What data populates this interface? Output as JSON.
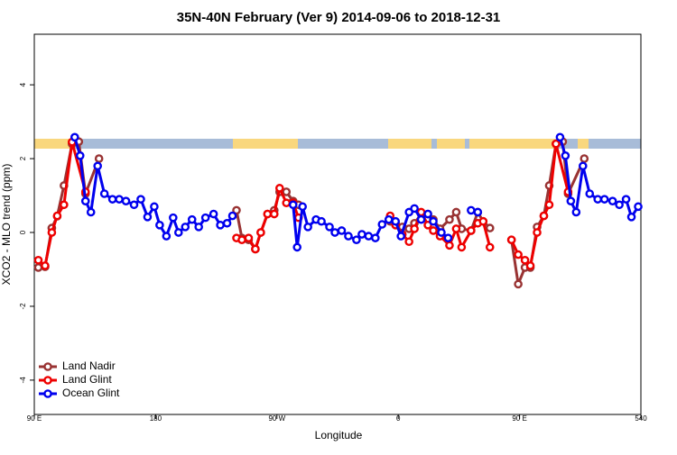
{
  "chart_data": {
    "type": "line",
    "title": "35N-40N February (Ver 9)   2014-09-06 to 2018-12-31",
    "x_label": "Longitude",
    "y_label": "XCO2 - MLO trend (ppm)",
    "xlim": [
      90,
      540
    ],
    "xticks": [
      {
        "value": 90,
        "label": "90 E"
      },
      180,
      {
        "value": 270,
        "label": "90 W"
      },
      {
        "value": 360,
        "label": "0"
      },
      {
        "value": 450,
        "label": "90 E"
      },
      540
    ],
    "ylim": [
      -4.93,
      5.37
    ],
    "yticks": [
      -4,
      -2,
      0,
      2,
      4
    ],
    "legend": "bottom-left",
    "series": [
      {
        "name": "Land Nadir",
        "color": "#993333",
        "x": [
          93,
          98,
          103,
          107,
          112,
          118,
          123,
          128,
          138,
          180,
          240,
          244,
          249,
          254,
          258,
          263,
          268,
          272,
          277,
          282,
          286,
          320,
          354,
          358,
          363,
          368,
          372,
          377,
          382,
          386,
          391,
          398,
          403,
          407,
          414,
          419,
          423,
          428,
          436,
          444,
          449,
          454,
          458,
          463,
          468,
          472,
          477,
          482,
          486,
          498
        ],
        "values": [
          -0.95,
          -0.93,
          0.12,
          0.44,
          1.27,
          2.4,
          2.46,
          1.05,
          2.0,
          null,
          0.6,
          -0.15,
          -0.2,
          -0.45,
          0,
          0.5,
          0.6,
          1.1,
          1.1,
          0.85,
          0.75,
          null,
          0.3,
          0.25,
          0.15,
          0.1,
          0.25,
          0.5,
          0.5,
          0.35,
          0.1,
          0.35,
          0.55,
          0.1,
          0.05,
          0.55,
          0.3,
          0.12,
          null,
          -0.2,
          -1.4,
          -0.95,
          -0.95,
          0.15,
          0.45,
          1.27,
          2.4,
          2.46,
          1.05,
          2.0
        ]
      },
      {
        "name": "Land Glint",
        "color": "#ee0000",
        "x": [
          93,
          98,
          103,
          107,
          112,
          118,
          128,
          180,
          240,
          244,
          249,
          254,
          258,
          263,
          268,
          272,
          277,
          282,
          286,
          320,
          354,
          358,
          363,
          368,
          372,
          377,
          382,
          386,
          391,
          398,
          403,
          407,
          414,
          419,
          423,
          428,
          436,
          444,
          449,
          454,
          458,
          463,
          468,
          472,
          477,
          486
        ],
        "values": [
          -0.75,
          -0.9,
          0,
          0.45,
          0.75,
          2.45,
          1.1,
          null,
          -0.15,
          -0.2,
          -0.15,
          -0.45,
          0,
          0.5,
          0.5,
          1.2,
          0.8,
          0.8,
          0.4,
          null,
          0.45,
          0.2,
          -0.05,
          -0.25,
          0.1,
          0.55,
          0.2,
          0.05,
          -0.1,
          -0.35,
          0.1,
          -0.4,
          0.05,
          0.25,
          0.3,
          -0.4,
          null,
          -0.2,
          -0.6,
          -0.75,
          -0.9,
          0,
          0.45,
          0.75,
          2.4,
          1.1
        ]
      },
      {
        "name": "Ocean Glint",
        "color": "#0000ee",
        "x": [
          120,
          124,
          128,
          132,
          137,
          142,
          148,
          153,
          158,
          164,
          169,
          174,
          179,
          183,
          188,
          193,
          197,
          202,
          207,
          212,
          217,
          223,
          228,
          233,
          237,
          260,
          282,
          285,
          289,
          293,
          299,
          303,
          309,
          313,
          318,
          323,
          329,
          333,
          338,
          343,
          348,
          353,
          358,
          362,
          368,
          372,
          377,
          382,
          386,
          392,
          397,
          405,
          414,
          419,
          450,
          480,
          484,
          488,
          492,
          497,
          502,
          508,
          513,
          519,
          524,
          529,
          533,
          538
        ],
        "values": [
          2.58,
          2.08,
          0.85,
          0.55,
          1.8,
          1.05,
          0.9,
          0.9,
          0.85,
          0.75,
          0.9,
          0.42,
          0.7,
          0.2,
          -0.1,
          0.4,
          0,
          0.15,
          0.35,
          0.15,
          0.4,
          0.5,
          0.2,
          0.25,
          0.45,
          null,
          0.75,
          -0.4,
          0.7,
          0.15,
          0.35,
          0.3,
          0.15,
          0,
          0.05,
          -0.1,
          -0.2,
          -0.05,
          -0.1,
          -0.15,
          0.22,
          0.35,
          0.3,
          -0.1,
          0.55,
          0.65,
          0.35,
          0.5,
          0.3,
          0,
          -0.15,
          null,
          0.6,
          0.55,
          null,
          2.58,
          2.08,
          0.85,
          0.55,
          1.8,
          1.05,
          0.9,
          0.9,
          0.85,
          0.75,
          0.9,
          0.42,
          0.7
        ]
      }
    ]
  }
}
